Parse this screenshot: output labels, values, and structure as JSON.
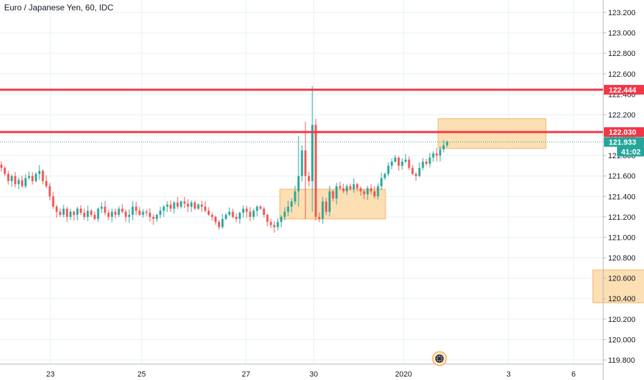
{
  "header": {
    "title": "Euro / Japanese Yen, 60, IDC"
  },
  "colors": {
    "up": "#26a69a",
    "down": "#ef5350",
    "level": "#f23645",
    "current": "#26a69a",
    "box_fill": "#fdd9a7",
    "box_stroke": "#f4b265",
    "grid": "#e6f1f1"
  },
  "icons": {
    "bottom_marker": "gear-icon"
  },
  "chart_data": {
    "type": "candlestick",
    "symbol": "Euro / Japanese Yen",
    "interval": "60",
    "source": "IDC",
    "ylim": [
      119.76,
      123.29
    ],
    "y_ticks": [
      "123.200",
      "123.000",
      "122.800",
      "122.600",
      "122.400",
      "122.200",
      "122.000",
      "121.800",
      "121.600",
      "121.400",
      "121.200",
      "121.000",
      "120.800",
      "120.600",
      "120.400",
      "120.200",
      "120.000",
      "119.800"
    ],
    "x_ticks": [
      "23",
      "25",
      "27",
      "30",
      "2020",
      "3",
      "6"
    ],
    "levels": [
      {
        "value": 122.444,
        "label": "122.444"
      },
      {
        "value": 122.03,
        "label": "122.030"
      }
    ],
    "current_price": {
      "value": 121.933,
      "label": "121.933",
      "countdown": "41:02"
    },
    "zones": [
      {
        "x_start": 40.5,
        "x_end": 55.8,
        "y_low": 121.18,
        "y_high": 121.47
      },
      {
        "x_start": 63.4,
        "x_end": 79.0,
        "y_low": 121.87,
        "y_high": 122.16
      },
      {
        "x_start": 85.8,
        "x_end": 94.9,
        "y_low": 120.36,
        "y_high": 120.68
      }
    ],
    "candles_hourly": {
      "start_x": 0.0,
      "step": 0.5,
      "closes": [
        121.68,
        121.62,
        121.55,
        121.6,
        121.52,
        121.56,
        121.5,
        121.58,
        121.6,
        121.55,
        121.62,
        121.65,
        121.55,
        121.5,
        121.4,
        121.3,
        121.25,
        121.22,
        121.28,
        121.2,
        121.25,
        121.22,
        121.28,
        121.24,
        121.2,
        121.26,
        121.22,
        121.18,
        121.28,
        121.3,
        121.24,
        121.2,
        121.25,
        121.22,
        121.28,
        121.25,
        121.2,
        121.22,
        121.3,
        121.26,
        121.22,
        121.25,
        121.24,
        121.2,
        121.18,
        121.22,
        121.26,
        121.3,
        121.32,
        121.28,
        121.34,
        121.3,
        121.35,
        121.33,
        121.3,
        121.34,
        121.28,
        121.32,
        121.3,
        121.26,
        121.22,
        121.2,
        121.15,
        121.1,
        121.18,
        121.22,
        121.25,
        121.2,
        121.18,
        121.24,
        121.28,
        121.25,
        121.2,
        121.26,
        121.3,
        121.28,
        121.22,
        121.15,
        121.12,
        121.1,
        121.15,
        121.2,
        121.25,
        121.3,
        121.35,
        121.45,
        121.6,
        121.85,
        121.6,
        121.55,
        122.1,
        121.2,
        121.18,
        121.35,
        121.25,
        121.45,
        121.38,
        121.5,
        121.48,
        121.45,
        121.5,
        121.47,
        121.52,
        121.48,
        121.45,
        121.42,
        121.48,
        121.45,
        121.4,
        121.5,
        121.58,
        121.62,
        121.7,
        121.74,
        121.78,
        121.7,
        121.74,
        121.76,
        121.68,
        121.62,
        121.6,
        121.68,
        121.74,
        121.72,
        121.78,
        121.82,
        121.8,
        121.86,
        121.9,
        121.933
      ],
      "spikes": [
        {
          "index": 88,
          "high": 122.13,
          "low": 121.18
        },
        {
          "index": 90,
          "high": 122.48,
          "low": 121.25
        },
        {
          "index": 86,
          "high": 121.99,
          "low": 121.3
        }
      ]
    }
  }
}
